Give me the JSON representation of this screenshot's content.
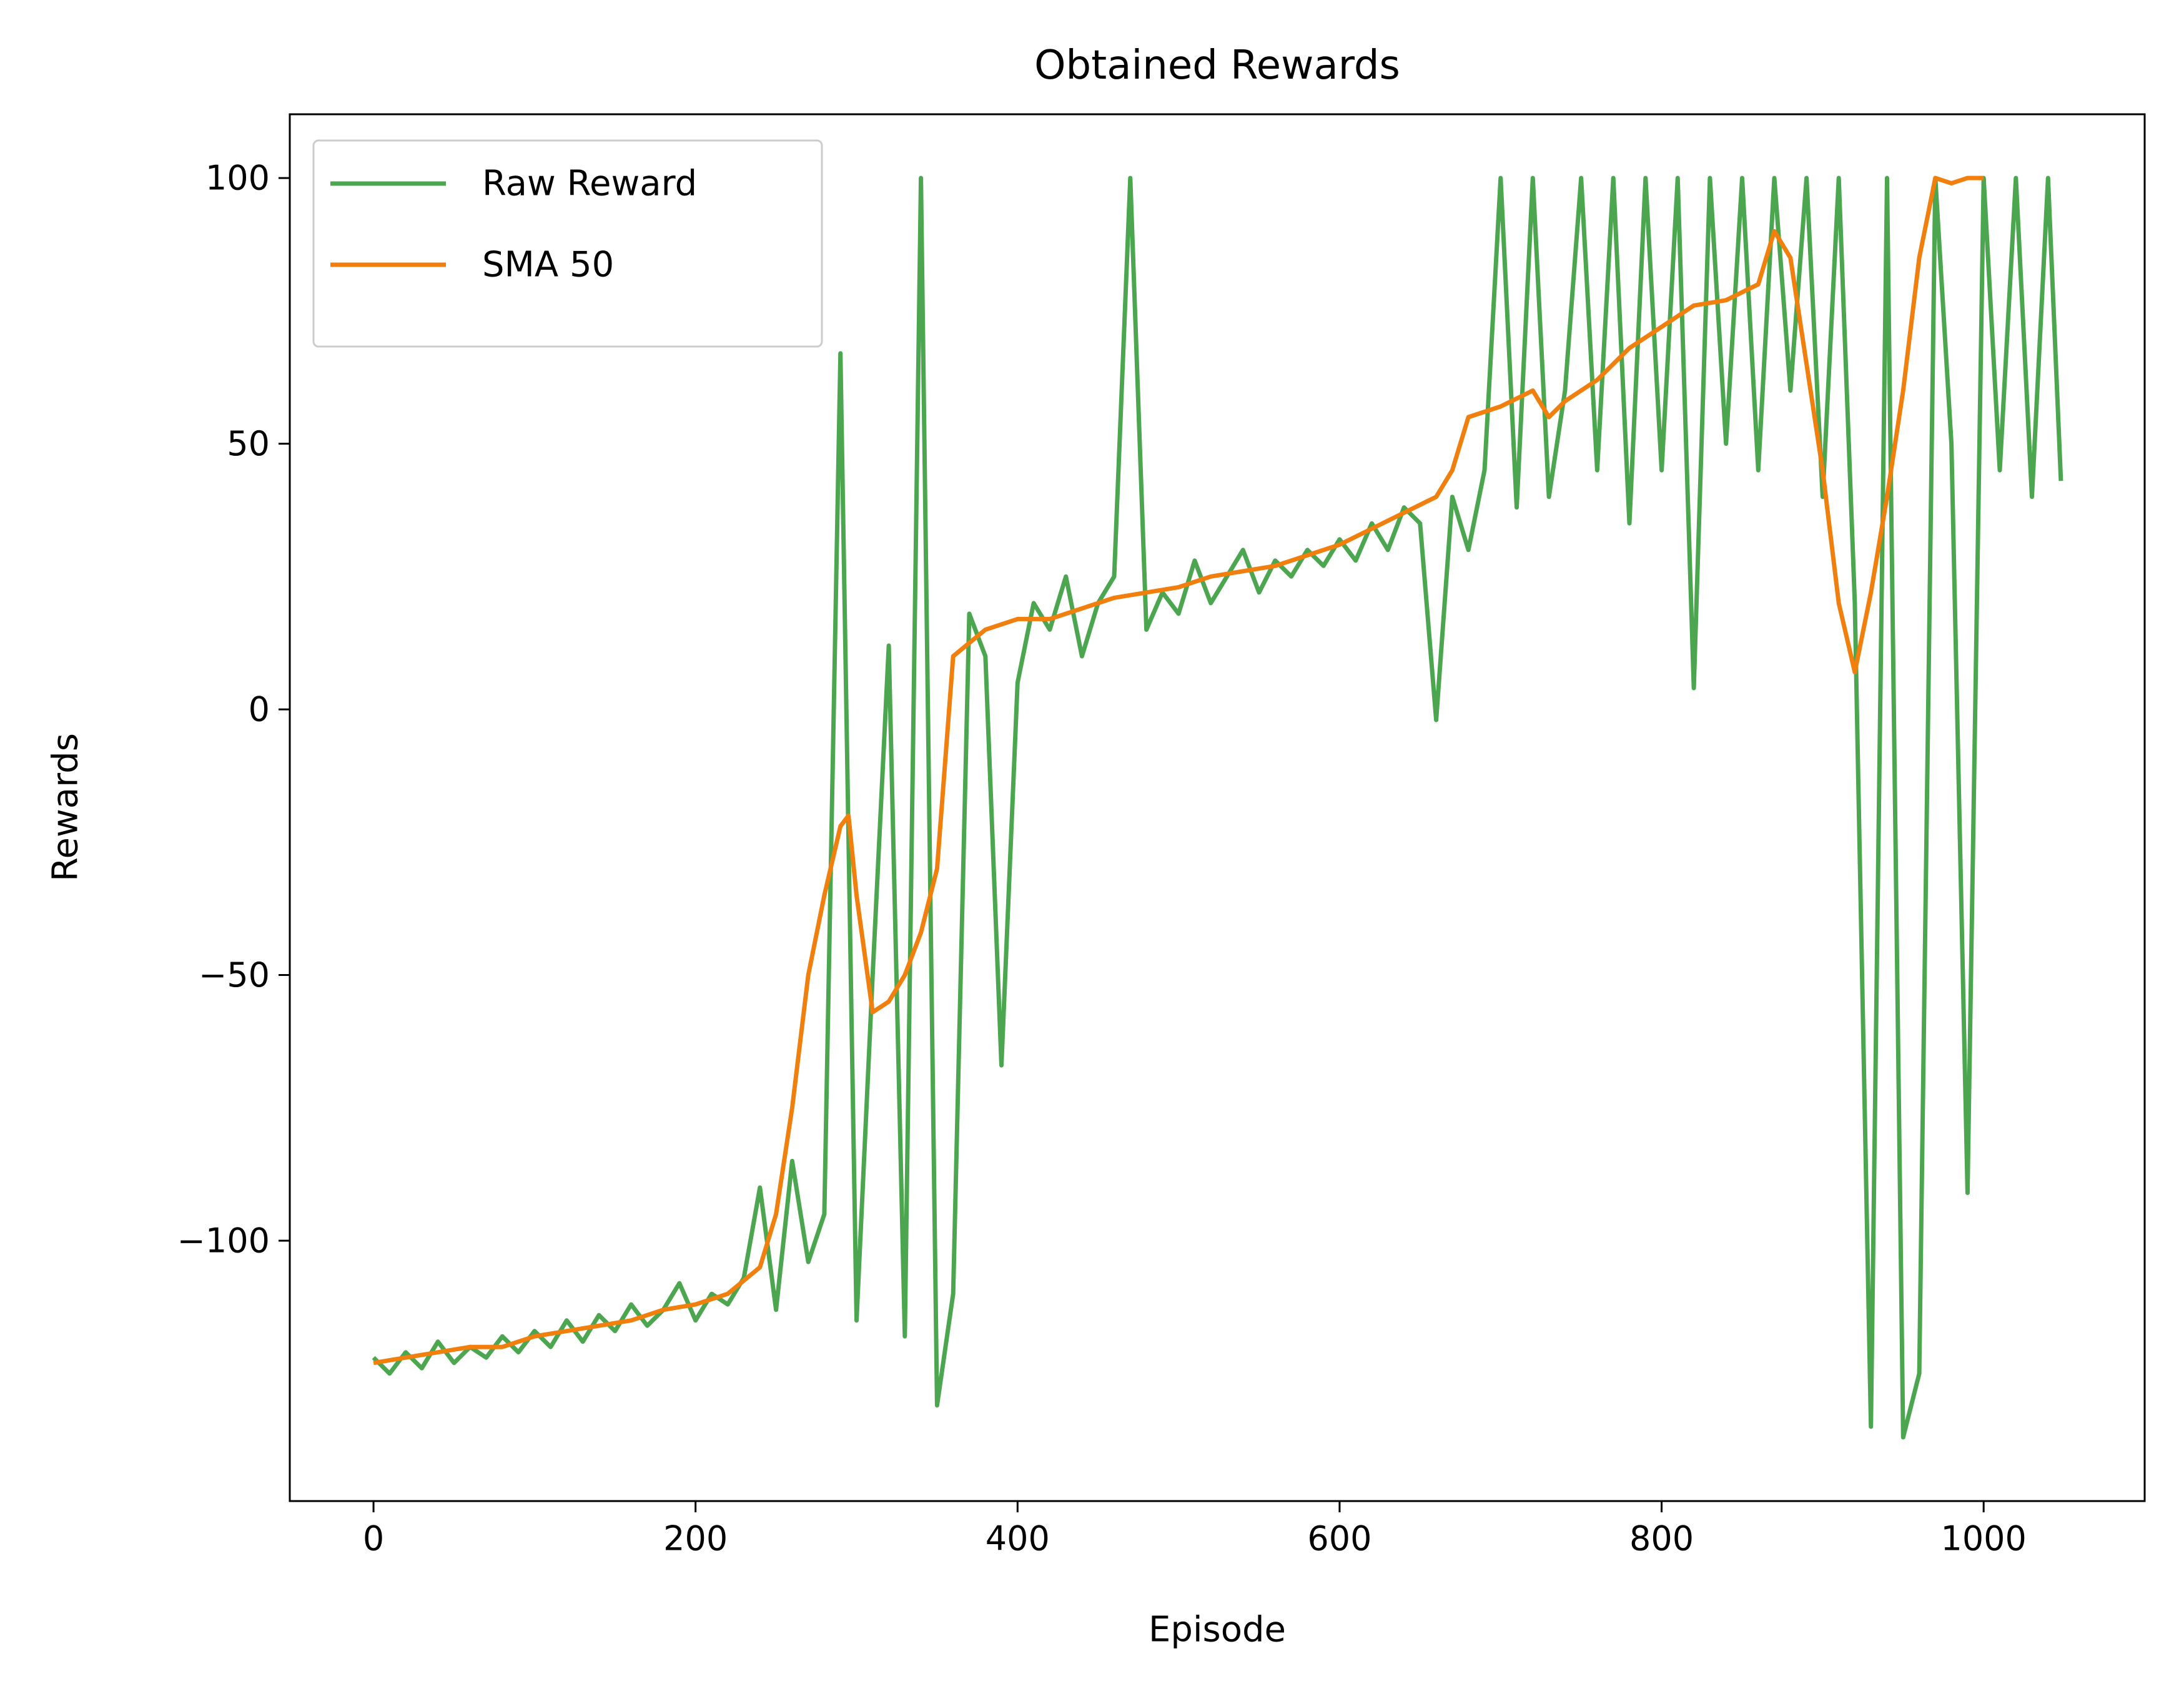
{
  "chart_data": {
    "type": "line",
    "title": "Obtained Rewards",
    "x_label": "Episode",
    "y_label": "Rewards",
    "xlim": [
      -52,
      1100
    ],
    "ylim": [
      -149,
      112
    ],
    "xticks": [
      0,
      200,
      400,
      600,
      800,
      1000
    ],
    "yticks": [
      {
        "value": -100,
        "label": "−100"
      },
      {
        "value": -50,
        "label": "−50"
      },
      0,
      50,
      100
    ],
    "grid": false,
    "legend": "upper left",
    "series": [
      {
        "name": "Raw Reward",
        "color": "#4ca64f",
        "x": [
          0,
          10,
          20,
          30,
          40,
          50,
          60,
          70,
          80,
          90,
          100,
          110,
          120,
          130,
          140,
          150,
          160,
          170,
          180,
          190,
          200,
          210,
          220,
          230,
          240,
          250,
          260,
          270,
          280,
          290,
          300,
          310,
          320,
          330,
          340,
          350,
          360,
          370,
          380,
          390,
          400,
          410,
          420,
          430,
          440,
          450,
          460,
          470,
          480,
          490,
          500,
          510,
          520,
          530,
          540,
          550,
          560,
          570,
          580,
          590,
          600,
          610,
          620,
          630,
          640,
          650,
          660,
          670,
          680,
          690,
          700,
          710,
          720,
          730,
          740,
          750,
          760,
          770,
          780,
          790,
          800,
          810,
          820,
          830,
          840,
          850,
          860,
          870,
          880,
          890,
          900,
          910,
          920,
          930,
          940,
          950,
          960,
          970,
          980,
          990,
          1000,
          1010,
          1020,
          1030,
          1040,
          1048
        ],
        "values": [
          -122,
          -125,
          -121,
          -124,
          -119,
          -123,
          -120,
          -122,
          -118,
          -121,
          -117,
          -120,
          -115,
          -119,
          -114,
          -117,
          -112,
          -116,
          -113,
          -108,
          -115,
          -110,
          -112,
          -107,
          -90,
          -113,
          -85,
          -104,
          -95,
          67,
          -115,
          -50,
          12,
          -118,
          100,
          -131,
          -110,
          18,
          10,
          -67,
          5,
          20,
          15,
          25,
          10,
          20,
          25,
          100,
          15,
          22,
          18,
          28,
          20,
          25,
          30,
          22,
          28,
          25,
          30,
          27,
          32,
          28,
          35,
          30,
          38,
          35,
          -2,
          40,
          30,
          45,
          100,
          38,
          100,
          40,
          60,
          100,
          45,
          100,
          35,
          100,
          45,
          100,
          4,
          100,
          50,
          100,
          45,
          100,
          60,
          100,
          40,
          100,
          20,
          -135,
          100,
          -137,
          -125,
          100,
          50,
          -91,
          100,
          45,
          100,
          40,
          100,
          43
        ]
      },
      {
        "name": "SMA 50",
        "color": "#f07f0e",
        "x": [
          0,
          20,
          40,
          60,
          80,
          100,
          120,
          140,
          160,
          180,
          200,
          220,
          240,
          250,
          260,
          270,
          280,
          290,
          295,
          300,
          310,
          320,
          330,
          340,
          350,
          360,
          380,
          400,
          420,
          440,
          460,
          480,
          500,
          520,
          540,
          560,
          580,
          600,
          620,
          640,
          660,
          670,
          680,
          700,
          720,
          730,
          740,
          760,
          780,
          800,
          820,
          840,
          860,
          870,
          880,
          890,
          900,
          910,
          920,
          930,
          940,
          950,
          960,
          970,
          980,
          990,
          1000
        ],
        "values": [
          -123,
          -122,
          -121,
          -120,
          -120,
          -118,
          -117,
          -116,
          -115,
          -113,
          -112,
          -110,
          -105,
          -95,
          -75,
          -50,
          -35,
          -22,
          -20,
          -35,
          -57,
          -55,
          -50,
          -42,
          -30,
          10,
          15,
          17,
          17,
          19,
          21,
          22,
          23,
          25,
          26,
          27,
          29,
          31,
          34,
          37,
          40,
          45,
          55,
          57,
          60,
          55,
          58,
          62,
          68,
          72,
          76,
          77,
          80,
          90,
          85,
          65,
          45,
          20,
          7,
          22,
          40,
          60,
          85,
          100,
          99,
          100,
          100
        ]
      }
    ]
  }
}
